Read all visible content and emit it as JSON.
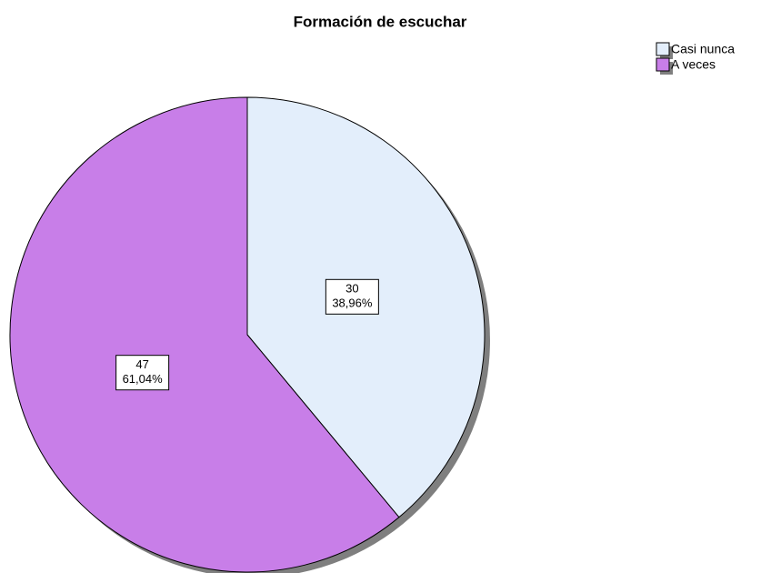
{
  "chart_data": {
    "type": "pie",
    "title": "Formación de escuchar",
    "categories": [
      "Casi nunca",
      "A veces"
    ],
    "values": [
      30,
      47
    ],
    "percentages": [
      38.96,
      61.04
    ],
    "percentage_labels": [
      "38,96%",
      "61,04%"
    ],
    "colors": [
      "#e3eefb",
      "#c87ee8"
    ],
    "legend": "top-right"
  }
}
